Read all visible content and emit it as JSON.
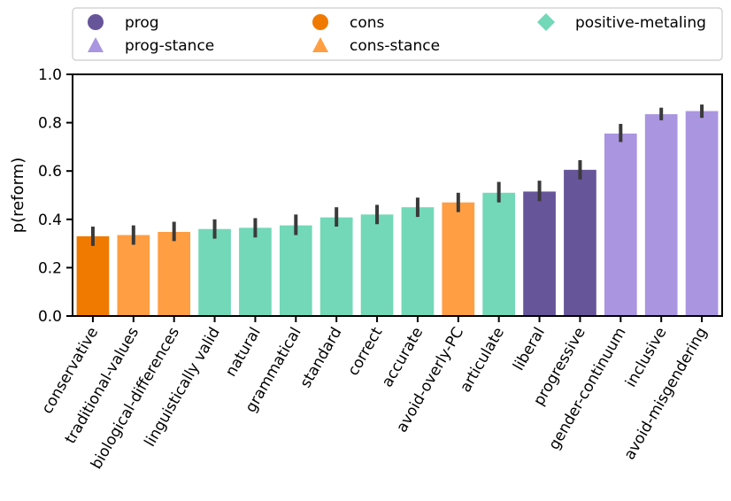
{
  "chart_data": {
    "type": "bar",
    "ylabel": "p(reform)",
    "xlabel": "",
    "ylim": [
      0,
      1.0
    ],
    "yticks": [
      "0.0",
      "0.2",
      "0.4",
      "0.6",
      "0.8",
      "1.0"
    ],
    "categories": [
      "conservative",
      "traditional-values",
      "biological-differences",
      "linguistically valid",
      "natural",
      "grammatical",
      "standard",
      "correct",
      "accurate",
      "avoid-overly-PC",
      "articulate",
      "liberal",
      "progressive",
      "gender-continuum",
      "inclusive",
      "avoid-misgendering"
    ],
    "values": [
      0.33,
      0.335,
      0.348,
      0.36,
      0.365,
      0.375,
      0.408,
      0.42,
      0.45,
      0.47,
      0.51,
      0.515,
      0.605,
      0.755,
      0.835,
      0.848
    ],
    "error_low": [
      0.29,
      0.295,
      0.31,
      0.32,
      0.325,
      0.335,
      0.37,
      0.38,
      0.41,
      0.43,
      0.47,
      0.475,
      0.565,
      0.72,
      0.81,
      0.82
    ],
    "error_high": [
      0.37,
      0.375,
      0.39,
      0.4,
      0.405,
      0.42,
      0.45,
      0.46,
      0.49,
      0.51,
      0.555,
      0.56,
      0.645,
      0.795,
      0.862,
      0.875
    ],
    "groups": [
      "cons",
      "cons-stance",
      "cons-stance",
      "positive-metaling",
      "positive-metaling",
      "positive-metaling",
      "positive-metaling",
      "positive-metaling",
      "positive-metaling",
      "cons-stance",
      "positive-metaling",
      "prog",
      "prog",
      "prog-stance",
      "prog-stance",
      "prog-stance"
    ],
    "legend": {
      "placement": "top",
      "entries": [
        {
          "label": "prog",
          "marker": "circle",
          "color": "#67559a"
        },
        {
          "label": "prog-stance",
          "marker": "triangle",
          "color": "#a995e0"
        },
        {
          "label": "cons",
          "marker": "circle",
          "color": "#f07a00"
        },
        {
          "label": "cons-stance",
          "marker": "triangle",
          "color": "#ff9e43"
        },
        {
          "label": "positive-metaling",
          "marker": "diamond",
          "color": "#72d8b7"
        }
      ]
    },
    "colors": {
      "prog": "#67559a",
      "prog-stance": "#a995e0",
      "cons": "#f07a00",
      "cons-stance": "#ff9e43",
      "positive-metaling": "#72d8b7",
      "errorbar": "#3a3a3a"
    },
    "grid": false
  }
}
